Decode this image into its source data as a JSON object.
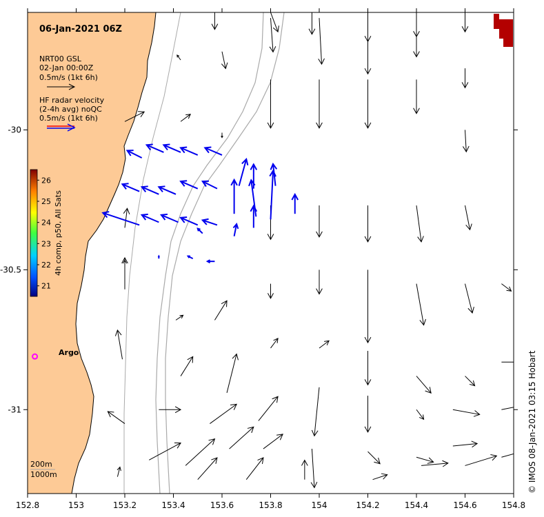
{
  "title": "06-Jan-2021 06Z",
  "legend": {
    "gsl": {
      "line1": "NRT00 GSL",
      "line2": "02-Jan 00:00Z",
      "line3": "0.5m/s (1kt 6h)"
    },
    "radar": {
      "line1": "HF radar velocity",
      "line2": "(2-4h avg) noQC",
      "line3": "0.5m/s (1kt 6h)"
    }
  },
  "colorbar": {
    "label": "4h comp, p50, All Sats",
    "ticks": [
      "26",
      "25",
      "24",
      "23",
      "22",
      "21"
    ],
    "range": [
      20.5,
      26.5
    ]
  },
  "argo_label": "Argo",
  "bathymetry": {
    "contour1": "200m",
    "contour2": "1000m"
  },
  "credit": "© IMOS 08-Jan-2021 03:15 Hobart",
  "axes": {
    "x_ticks": [
      "152.8",
      "153",
      "153.2",
      "153.4",
      "153.6",
      "153.8",
      "154",
      "154.2",
      "154.4",
      "154.6",
      "154.8"
    ],
    "y_ticks": [
      "-30",
      "-30.5",
      "-31"
    ]
  },
  "colors": {
    "land": "#fdca96",
    "radar": "#0000ee",
    "gsl_arrow": "#000000",
    "argo": "#ff00ff",
    "contour": "#a9a9a9",
    "warm_patch": "#b30000"
  },
  "chart_data": {
    "type": "vector-field",
    "lon_range": [
      152.8,
      154.8
    ],
    "lat_range": [
      -31.3,
      -29.58
    ],
    "argo": {
      "lon": 152.83,
      "lat": -30.81
    },
    "gsl_vectors": [
      [
        153.57,
        -29.58,
        0,
        -0.07
      ],
      [
        153.8,
        -29.58,
        0.03,
        -0.08
      ],
      [
        153.97,
        -29.58,
        0,
        -0.09
      ],
      [
        154.2,
        -29.58,
        0,
        -0.12
      ],
      [
        154.4,
        -29.58,
        0,
        -0.1
      ],
      [
        154.6,
        -29.58,
        0,
        -0.08
      ],
      [
        153.43,
        -29.75,
        -0.015,
        0.02
      ],
      [
        153.6,
        -29.72,
        0.015,
        -0.07
      ],
      [
        153.8,
        -29.6,
        0.01,
        -0.14
      ],
      [
        154.0,
        -29.6,
        0.01,
        -0.19
      ],
      [
        154.2,
        -29.6,
        0,
        -0.23
      ],
      [
        154.4,
        -29.6,
        0,
        -0.16
      ],
      [
        154.6,
        -29.78,
        0,
        -0.08
      ],
      [
        153.2,
        -29.97,
        0.08,
        0.04
      ],
      [
        153.43,
        -29.97,
        0.04,
        0.03
      ],
      [
        153.6,
        -30.01,
        0.0,
        -0.02
      ],
      [
        153.8,
        -29.82,
        0,
        -0.2
      ],
      [
        154.0,
        -29.82,
        0,
        -0.2
      ],
      [
        154.2,
        -29.82,
        0,
        -0.2
      ],
      [
        154.4,
        -29.82,
        0,
        -0.14
      ],
      [
        154.6,
        -30.0,
        0.005,
        -0.09
      ],
      [
        153.2,
        -30.35,
        0.01,
        0.08
      ],
      [
        153.43,
        -30.27,
        0,
        0
      ],
      [
        153.6,
        -30.27,
        0,
        0
      ],
      [
        153.8,
        -30.27,
        0,
        -0.14
      ],
      [
        154.0,
        -30.27,
        0,
        -0.13
      ],
      [
        154.2,
        -30.27,
        0,
        -0.15
      ],
      [
        154.4,
        -30.27,
        0.02,
        -0.15
      ],
      [
        154.6,
        -30.27,
        0.02,
        -0.1
      ],
      [
        153.2,
        -30.5,
        0,
        0.04
      ],
      [
        153.2,
        -30.57,
        0.0,
        0.13
      ],
      [
        153.41,
        -30.68,
        0.03,
        0.02
      ],
      [
        153.57,
        -30.68,
        0.05,
        0.08
      ],
      [
        153.8,
        -30.55,
        0.0,
        -0.06
      ],
      [
        154.0,
        -30.5,
        0.0,
        -0.1
      ],
      [
        154.2,
        -30.5,
        0,
        -0.3
      ],
      [
        154.4,
        -30.55,
        0.03,
        -0.17
      ],
      [
        154.6,
        -30.55,
        0.03,
        -0.12
      ],
      [
        154.75,
        -30.55,
        0.04,
        -0.03
      ],
      [
        153.19,
        -30.82,
        -0.02,
        0.12
      ],
      [
        153.43,
        -30.88,
        0.05,
        0.08
      ],
      [
        153.62,
        -30.94,
        0.04,
        0.16
      ],
      [
        153.8,
        -30.78,
        0.03,
        0.04
      ],
      [
        154.0,
        -30.78,
        0.04,
        0.03
      ],
      [
        154.2,
        -30.79,
        0,
        -0.14
      ],
      [
        154.4,
        -30.88,
        0.06,
        -0.07
      ],
      [
        154.6,
        -30.88,
        0.04,
        -0.04
      ],
      [
        154.75,
        -30.83,
        0.08,
        0.0
      ],
      [
        153.2,
        -31.05,
        -0.07,
        0.05
      ],
      [
        153.34,
        -31.0,
        0.09,
        0.0
      ],
      [
        153.55,
        -31.05,
        0.11,
        0.08
      ],
      [
        153.75,
        -31.04,
        0.08,
        0.1
      ],
      [
        154.0,
        -30.92,
        -0.02,
        -0.2
      ],
      [
        154.2,
        -30.95,
        0,
        -0.15
      ],
      [
        154.4,
        -31.0,
        0.03,
        -0.04
      ],
      [
        154.55,
        -31.0,
        0.11,
        -0.02
      ],
      [
        154.75,
        -31.0,
        0.15,
        0.03
      ],
      [
        153.3,
        -31.18,
        0.13,
        0.07
      ],
      [
        153.45,
        -31.2,
        0.12,
        0.11
      ],
      [
        153.63,
        -31.14,
        0.1,
        0.09
      ],
      [
        153.77,
        -31.14,
        0.08,
        0.06
      ],
      [
        153.97,
        -31.14,
        0.01,
        -0.16
      ],
      [
        154.2,
        -31.15,
        0.05,
        -0.05
      ],
      [
        154.4,
        -31.17,
        0.07,
        -0.02
      ],
      [
        154.55,
        -31.13,
        0.1,
        0.01
      ],
      [
        154.75,
        -31.17,
        0.18,
        0.05
      ],
      [
        153.17,
        -31.24,
        0.01,
        0.04
      ],
      [
        153.5,
        -31.25,
        0.08,
        0.09
      ],
      [
        153.7,
        -31.25,
        0.07,
        0.09
      ],
      [
        153.94,
        -31.25,
        0,
        0.08
      ],
      [
        154.22,
        -31.25,
        0.06,
        0.02
      ],
      [
        154.42,
        -31.2,
        0.11,
        0.01
      ],
      [
        154.6,
        -31.2,
        0.13,
        0.04
      ]
    ],
    "radar_vectors": [
      [
        153.27,
        -30.1,
        -0.06,
        0.03
      ],
      [
        153.36,
        -30.08,
        -0.07,
        0.03
      ],
      [
        153.43,
        -30.08,
        -0.07,
        0.03
      ],
      [
        153.5,
        -30.09,
        -0.07,
        0.03
      ],
      [
        153.6,
        -30.09,
        -0.07,
        0.03
      ],
      [
        153.67,
        -30.2,
        0.03,
        0.11
      ],
      [
        153.73,
        -30.21,
        0.0,
        0.1
      ],
      [
        153.82,
        -30.2,
        -0.01,
        0.09
      ],
      [
        153.9,
        -30.3,
        0.0,
        0.08
      ],
      [
        153.26,
        -30.22,
        -0.07,
        0.03
      ],
      [
        153.34,
        -30.23,
        -0.07,
        0.03
      ],
      [
        153.41,
        -30.23,
        -0.07,
        0.03
      ],
      [
        153.5,
        -30.21,
        -0.07,
        0.03
      ],
      [
        153.58,
        -30.21,
        -0.06,
        0.03
      ],
      [
        153.65,
        -30.3,
        0.0,
        0.14
      ],
      [
        153.74,
        -30.31,
        -0.02,
        0.15
      ],
      [
        153.8,
        -30.32,
        0.01,
        0.2
      ],
      [
        153.26,
        -30.34,
        -0.15,
        0.05
      ],
      [
        153.34,
        -30.33,
        -0.07,
        0.03
      ],
      [
        153.42,
        -30.33,
        -0.07,
        0.03
      ],
      [
        153.5,
        -30.34,
        -0.07,
        0.03
      ],
      [
        153.58,
        -30.34,
        -0.06,
        0.02
      ],
      [
        153.65,
        -30.38,
        0.01,
        0.05
      ],
      [
        153.73,
        -30.35,
        0.0,
        0.09
      ],
      [
        153.57,
        -30.47,
        -0.03,
        0.0
      ],
      [
        153.48,
        -30.46,
        -0.02,
        0.01
      ],
      [
        153.38,
        -30.46,
        0.0,
        0.0
      ],
      [
        153.34,
        -30.46,
        0,
        0.01
      ],
      [
        153.52,
        -30.37,
        -0.02,
        0.02
      ],
      [
        153.2,
        -30.1,
        0,
        0.0
      ]
    ]
  }
}
